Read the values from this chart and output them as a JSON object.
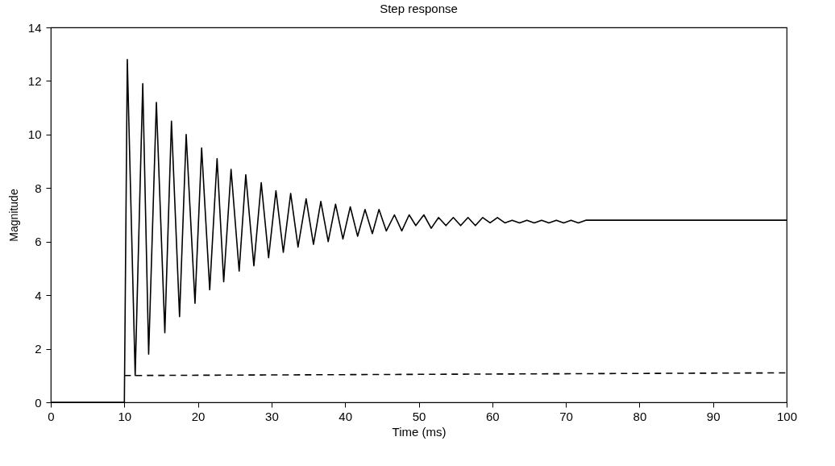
{
  "chart_data": {
    "type": "line",
    "title": "Step response",
    "xlabel": "Time (ms)",
    "ylabel": "Magnitude",
    "xlim": [
      0,
      100
    ],
    "ylim": [
      0,
      14
    ],
    "xticks": [
      0,
      10,
      20,
      30,
      40,
      50,
      60,
      70,
      80,
      90,
      100
    ],
    "yticks": [
      0,
      2,
      4,
      6,
      8,
      10,
      12,
      14
    ],
    "grid": false,
    "marker": "none",
    "series": [
      {
        "color": "#000000",
        "line_style": "solid",
        "x": [
          0,
          10,
          10.4,
          11.47,
          12.5,
          13.3,
          14.35,
          15.5,
          16.4,
          17.5,
          18.4,
          19.6,
          20.5,
          21.6,
          22.6,
          23.5,
          24.5,
          25.6,
          26.5,
          27.6,
          28.6,
          29.6,
          30.6,
          31.6,
          32.6,
          33.6,
          34.7,
          35.7,
          36.7,
          37.7,
          38.7,
          39.7,
          40.7,
          41.7,
          42.7,
          43.7,
          44.6,
          45.6,
          46.7,
          47.7,
          48.7,
          49.6,
          50.7,
          51.7,
          52.7,
          53.7,
          54.7,
          55.7,
          56.7,
          57.7,
          58.7,
          59.7,
          60.7,
          61.7,
          62.7,
          63.7,
          64.7,
          65.7,
          66.7,
          67.7,
          68.7,
          69.7,
          70.7,
          71.7,
          72.7,
          76,
          80,
          85,
          90,
          95,
          100
        ],
        "values": [
          0,
          0,
          12.8,
          1.0,
          11.9,
          1.8,
          11.2,
          2.6,
          10.5,
          3.2,
          10.0,
          3.7,
          9.5,
          4.2,
          9.1,
          4.5,
          8.7,
          4.9,
          8.5,
          5.1,
          8.2,
          5.4,
          7.9,
          5.6,
          7.8,
          5.8,
          7.6,
          5.9,
          7.5,
          6.0,
          7.4,
          6.1,
          7.3,
          6.2,
          7.2,
          6.3,
          7.2,
          6.4,
          7.0,
          6.4,
          7.0,
          6.6,
          7.0,
          6.5,
          6.9,
          6.6,
          6.9,
          6.6,
          6.9,
          6.6,
          6.9,
          6.7,
          6.9,
          6.7,
          6.8,
          6.7,
          6.8,
          6.7,
          6.8,
          6.7,
          6.8,
          6.7,
          6.8,
          6.7,
          6.8,
          6.8,
          6.8,
          6.8,
          6.8,
          6.8,
          6.8
        ]
      },
      {
        "color": "#000000",
        "line_style": "dashed",
        "x": [
          10,
          100
        ],
        "values": [
          1.0,
          1.1
        ]
      }
    ]
  }
}
